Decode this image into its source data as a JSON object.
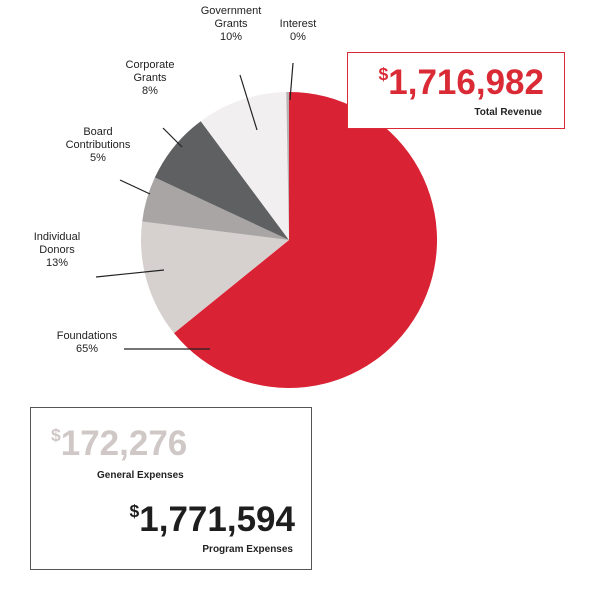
{
  "chart_data": {
    "type": "pie",
    "title": "",
    "slices": [
      {
        "label": [
          "Foundations"
        ],
        "percent_label": "65%",
        "value": 65,
        "color": "#d92234"
      },
      {
        "label": [
          "Individual",
          "Donors"
        ],
        "percent_label": "13%",
        "value": 13,
        "color": "#d6d0ce"
      },
      {
        "label": [
          "Board",
          "Contributions"
        ],
        "percent_label": "5%",
        "value": 5,
        "color": "#a8a5a4"
      },
      {
        "label": [
          "Corporate",
          "Grants"
        ],
        "percent_label": "8%",
        "value": 8,
        "color": "#5f6062"
      },
      {
        "label": [
          "Government",
          "Grants"
        ],
        "percent_label": "10%",
        "value": 10,
        "color": "#f2eff0"
      },
      {
        "label": [
          "Interest"
        ],
        "percent_label": "0%",
        "value": 0.3,
        "color": "#b8b3b2"
      }
    ]
  },
  "revenue": {
    "currency": "$",
    "amount": "1,716,982",
    "label": "Total Revenue",
    "color": "#d92a35"
  },
  "general_expenses": {
    "currency": "$",
    "amount": "172,276",
    "label": "General Expenses",
    "color": "#cfc8c6"
  },
  "program_expenses": {
    "currency": "$",
    "amount": "1,771,594",
    "label": "Program Expenses",
    "color": "#1e1e1e"
  }
}
